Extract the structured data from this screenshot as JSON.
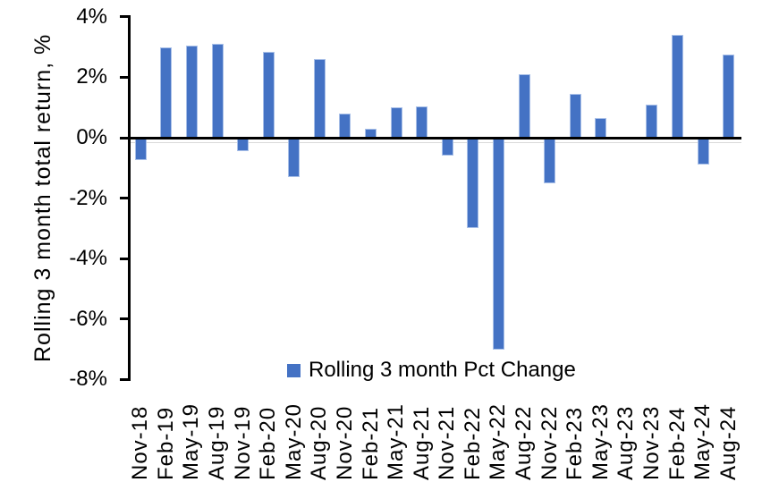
{
  "chart_data": {
    "type": "bar",
    "title": "",
    "ylabel": "Rolling 3 month total return, %",
    "xlabel": "",
    "categories": [
      "Nov-18",
      "Feb-19",
      "May-19",
      "Aug-19",
      "Nov-19",
      "Feb-20",
      "May-20",
      "Aug-20",
      "Nov-20",
      "Feb-21",
      "May-21",
      "Aug-21",
      "Nov-21",
      "Feb-22",
      "May-22",
      "Aug-22",
      "Nov-22",
      "Feb-23",
      "May-23",
      "Aug-23",
      "Nov-23",
      "Feb-24",
      "May-24",
      "Aug-24"
    ],
    "values": [
      -0.75,
      3.0,
      3.05,
      3.1,
      -0.45,
      2.85,
      -1.3,
      2.6,
      0.8,
      0.3,
      1.0,
      1.05,
      -0.6,
      -3.0,
      -7.0,
      2.1,
      -1.5,
      1.45,
      0.65,
      0.0,
      1.1,
      3.4,
      -0.9,
      2.75
    ],
    "ylim": [
      -8,
      4
    ],
    "y_ticks": [
      4,
      2,
      0,
      -2,
      -4,
      -6,
      -8
    ],
    "y_tick_labels": [
      "4%",
      "2%",
      "0%",
      "-2%",
      "-4%",
      "-6%",
      "-8%"
    ],
    "grid": false,
    "legend": {
      "label": "Rolling 3 month Pct Change",
      "position": "bottom-center-inside",
      "swatch_color": "#4472C4"
    },
    "bar_color": "#4472C4",
    "bar_border_color": "#A9C0E8",
    "axis_color": "#000000",
    "category_axis_color": "#D9D9D9"
  }
}
